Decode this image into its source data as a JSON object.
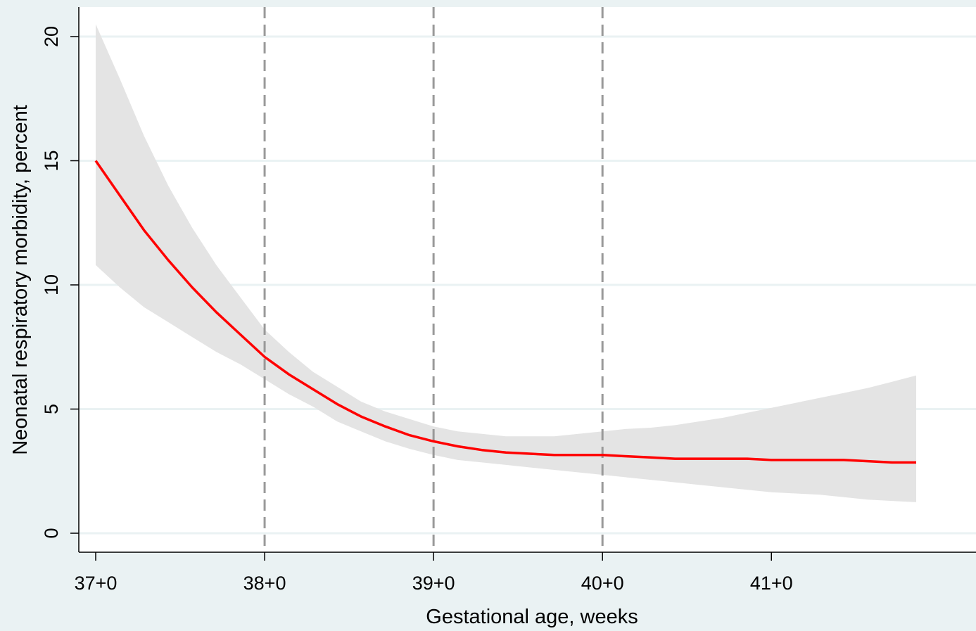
{
  "chart_data": {
    "type": "line",
    "xlabel": "Gestational age, weeks",
    "ylabel": "Neonatal respiratory morbidity, percent",
    "xlim": [
      37.0,
      41.857
    ],
    "ylim": [
      0,
      20
    ],
    "x_ticks": [
      {
        "value": 37,
        "label": "37+0"
      },
      {
        "value": 38,
        "label": "38+0"
      },
      {
        "value": 39,
        "label": "39+0"
      },
      {
        "value": 40,
        "label": "40+0"
      },
      {
        "value": 41,
        "label": "41+0"
      }
    ],
    "y_ticks": [
      {
        "value": 0,
        "label": "0"
      },
      {
        "value": 5,
        "label": "5"
      },
      {
        "value": 10,
        "label": "10"
      },
      {
        "value": 15,
        "label": "15"
      },
      {
        "value": 20,
        "label": "20"
      }
    ],
    "grid": "horizontal",
    "reference_lines_x": [
      38,
      39,
      40
    ],
    "colors": {
      "line": "#ff0000",
      "band": "#e4e4e4",
      "reference": "#999999",
      "background": "#eaf2f3",
      "plot_background": "#ffffff"
    },
    "series": [
      {
        "x": [
          37.0,
          37.143,
          37.286,
          37.429,
          37.571,
          37.714,
          37.857,
          38.0,
          38.143,
          38.286,
          38.429,
          38.571,
          38.714,
          38.857,
          39.0,
          39.143,
          39.286,
          39.429,
          39.571,
          39.714,
          39.857,
          40.0,
          40.143,
          40.286,
          40.429,
          40.571,
          40.714,
          40.857,
          41.0,
          41.143,
          41.286,
          41.429,
          41.571,
          41.714,
          41.857
        ],
        "y": [
          15.0,
          13.6,
          12.2,
          11.0,
          9.9,
          8.9,
          8.0,
          7.1,
          6.4,
          5.8,
          5.2,
          4.7,
          4.3,
          3.95,
          3.7,
          3.5,
          3.35,
          3.25,
          3.2,
          3.15,
          3.15,
          3.15,
          3.1,
          3.05,
          3.0,
          3.0,
          3.0,
          3.0,
          2.95,
          2.95,
          2.95,
          2.95,
          2.9,
          2.85,
          2.85
        ],
        "lower": [
          10.8,
          9.9,
          9.1,
          8.5,
          7.9,
          7.3,
          6.8,
          6.2,
          5.6,
          5.1,
          4.5,
          4.1,
          3.7,
          3.4,
          3.15,
          2.95,
          2.85,
          2.75,
          2.65,
          2.55,
          2.45,
          2.35,
          2.25,
          2.15,
          2.05,
          1.95,
          1.85,
          1.75,
          1.65,
          1.6,
          1.55,
          1.45,
          1.35,
          1.3,
          1.25
        ],
        "upper": [
          20.5,
          18.3,
          16.0,
          14.0,
          12.3,
          10.8,
          9.5,
          8.2,
          7.3,
          6.5,
          5.9,
          5.3,
          4.9,
          4.6,
          4.3,
          4.1,
          4.0,
          3.9,
          3.9,
          3.9,
          4.0,
          4.1,
          4.2,
          4.25,
          4.35,
          4.5,
          4.65,
          4.85,
          5.05,
          5.25,
          5.45,
          5.65,
          5.85,
          6.1,
          6.35
        ]
      }
    ]
  }
}
